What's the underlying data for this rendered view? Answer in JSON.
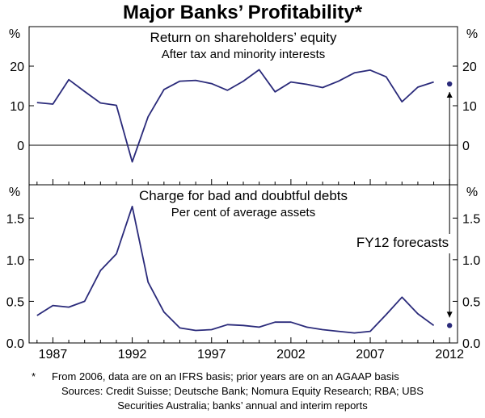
{
  "chart_title": "Major Banks’ Profitability*",
  "chart_data": [
    {
      "type": "line",
      "title": "Return on shareholders’ equity",
      "subtitle": "After tax and minority interests",
      "unit": "%",
      "ylim": [
        -10,
        30
      ],
      "yticks": [
        0,
        10,
        20
      ],
      "x": [
        1986,
        1987,
        1988,
        1989,
        1990,
        1991,
        1992,
        1993,
        1994,
        1995,
        1996,
        1997,
        1998,
        1999,
        2000,
        2001,
        2002,
        2003,
        2004,
        2005,
        2006,
        2007,
        2008,
        2009,
        2010,
        2011
      ],
      "values": [
        10.8,
        10.4,
        16.6,
        13.6,
        10.7,
        10.1,
        -4.2,
        7.2,
        14.1,
        16.2,
        16.4,
        15.6,
        13.9,
        16.2,
        19.1,
        13.5,
        16.0,
        15.4,
        14.6,
        16.2,
        18.3,
        19.0,
        17.3,
        11.0,
        14.7,
        16.0
      ],
      "forecast": {
        "x": 2012,
        "value": 15.5
      }
    },
    {
      "type": "line",
      "title": "Charge for bad and doubtful debts",
      "subtitle": "Per cent of average assets",
      "unit": "%",
      "ylim": [
        0,
        1.9
      ],
      "yticks": [
        "0.0",
        "0.5",
        "1.0",
        "1.5"
      ],
      "x": [
        1986,
        1987,
        1988,
        1989,
        1990,
        1991,
        1992,
        1993,
        1994,
        1995,
        1996,
        1997,
        1998,
        1999,
        2000,
        2001,
        2002,
        2003,
        2004,
        2005,
        2006,
        2007,
        2008,
        2009,
        2010,
        2011
      ],
      "values": [
        0.33,
        0.45,
        0.43,
        0.5,
        0.87,
        1.07,
        1.64,
        0.73,
        0.37,
        0.18,
        0.15,
        0.16,
        0.22,
        0.21,
        0.19,
        0.25,
        0.25,
        0.19,
        0.16,
        0.14,
        0.12,
        0.14,
        0.34,
        0.55,
        0.35,
        0.21
      ],
      "forecast": {
        "x": 2012,
        "value": 0.21
      }
    }
  ],
  "x_axis": {
    "xlim": [
      1985.5,
      2012.5
    ],
    "ticks": [
      "1987",
      "1992",
      "1997",
      "2002",
      "2007",
      "2012"
    ]
  },
  "forecast_label": "FY12 forecasts",
  "colors": {
    "line": "#2a2a7a",
    "dot": "#2a2a7a",
    "axis": "#000000"
  },
  "notes": {
    "asterisk": "*",
    "footnote": "From 2006, data are on an IFRS basis; prior years are on an AGAAP basis",
    "sources_1": "Sources: Credit Suisse; Deutsche Bank; Nomura Equity Research; RBA; UBS",
    "sources_2": "Securities Australia; banks’ annual and interim reports"
  }
}
